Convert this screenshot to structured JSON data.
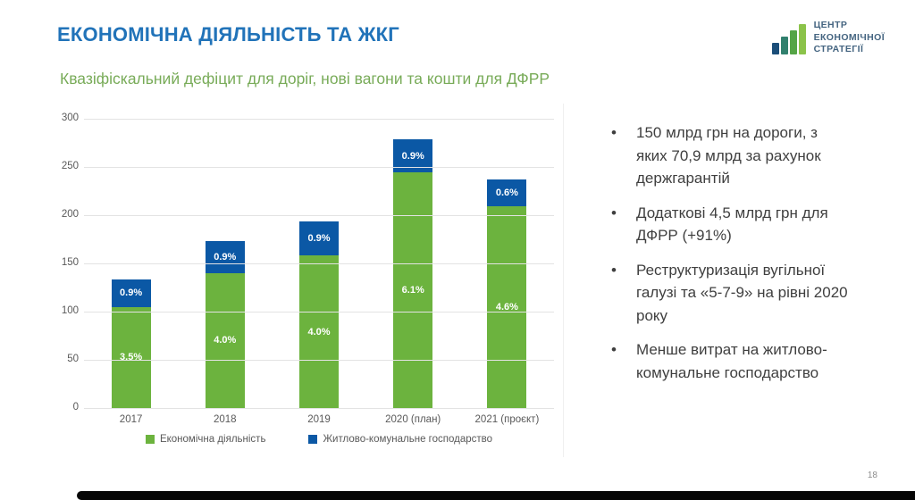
{
  "slide": {
    "title": "ЕКОНОМІЧНА ДІЯЛЬНІСТЬ ТА ЖКГ",
    "subtitle": "Квазіфіскальний дефіцит для доріг, нові вагони та кошти для ДФРР",
    "page_number": "18"
  },
  "logo": {
    "line1": "Центр",
    "line2": "економічної",
    "line3": "стратегії",
    "bar_colors": [
      "#1b4e79",
      "#31806e",
      "#55a546",
      "#8bc34a"
    ]
  },
  "chart_data": {
    "type": "bar",
    "stacked": true,
    "title": "",
    "xlabel": "",
    "ylabel": "",
    "categories": [
      "2017",
      "2018",
      "2019",
      "2020 (план)",
      "2021 (проєкт)"
    ],
    "series": [
      {
        "name": "Економічна діяльність",
        "color": "#6cb33e",
        "values": [
          105,
          140,
          158,
          244,
          209
        ],
        "labels": [
          "3.5%",
          "4.0%",
          "4.0%",
          "6.1%",
          "4.6%"
        ]
      },
      {
        "name": "Житлово-комунальне господарство",
        "color": "#0b58a5",
        "values": [
          28,
          33,
          36,
          35,
          28
        ],
        "labels": [
          "0.9%",
          "0.9%",
          "0.9%",
          "0.9%",
          "0.6%"
        ]
      }
    ],
    "totals": [
      133,
      173,
      194,
      279,
      237
    ],
    "ylim": [
      0,
      300
    ],
    "yticks": [
      0,
      50,
      100,
      150,
      200,
      250,
      300
    ],
    "grid": true,
    "legend_position": "bottom"
  },
  "bullets": [
    "150 млрд грн на дороги, з\nяких 70,9 млрд за рахунок\nдержгарантій",
    "Додаткові 4,5 млрд грн для\nДФРР (+91%)",
    "Реструктуризація вугільної\nгалузі та «5-7-9» на рівні 2020\nроку",
    "Менше витрат на житлово-\nкомунальне господарство"
  ],
  "bullet_marker": "•",
  "colors": {
    "title_blue": "#2173b9",
    "subtitle_green": "#78ab58",
    "bar_green": "#6cb33e",
    "bar_blue": "#0b58a5",
    "axis_gray": "#595959",
    "text_gray": "#3f3f3f"
  }
}
